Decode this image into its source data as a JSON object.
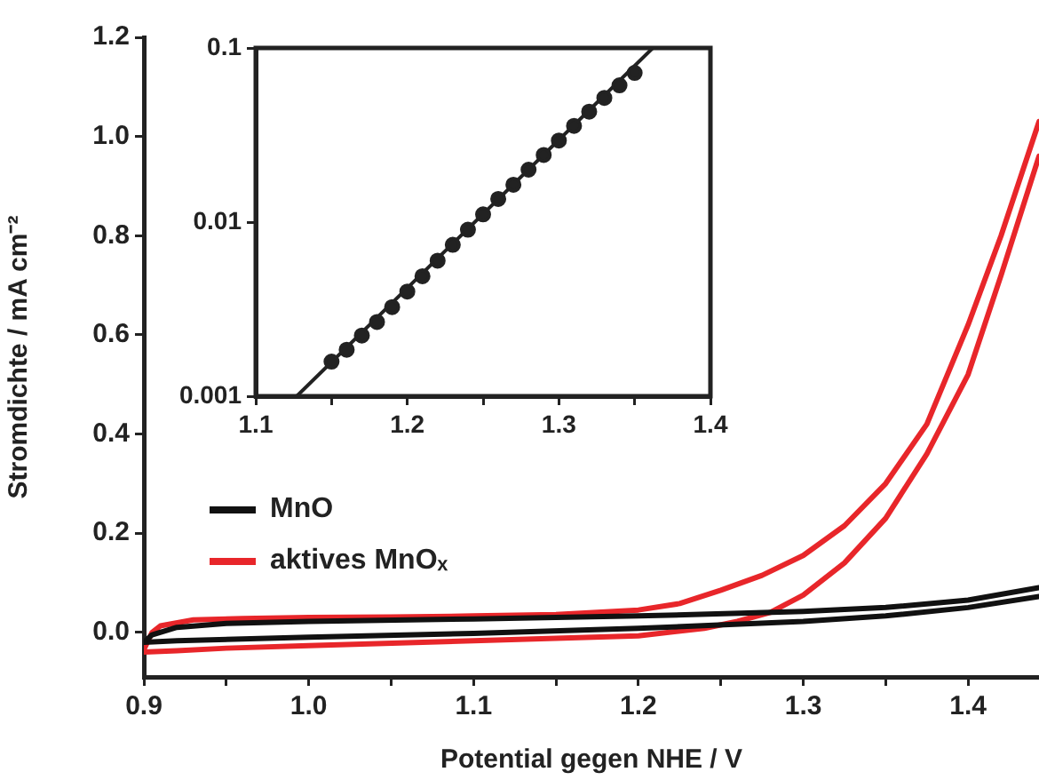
{
  "chart_data": [
    {
      "type": "line",
      "xlabel": "Potential gegen NHE / V",
      "ylabel": "Stromdichte / mA cm⁻²",
      "legend": "left",
      "marker": "none",
      "line_style": "solid",
      "xlim": [
        0.9,
        1.443
      ],
      "ylim": [
        -0.09,
        1.2
      ],
      "xticks": [
        0.9,
        {
          "value": 0.95,
          "label": null
        },
        {
          "value": 1.0,
          "label": "1.0"
        },
        {
          "value": 1.05,
          "label": null
        },
        1.1,
        {
          "value": 1.15,
          "label": null
        },
        1.2,
        {
          "value": 1.25,
          "label": null
        },
        1.3,
        {
          "value": 1.35,
          "label": null
        },
        1.4
      ],
      "yticks": [
        {
          "value": 0,
          "label": "0.0"
        },
        0.2,
        0.4,
        0.6,
        0.8,
        {
          "value": 1,
          "label": "1.0"
        },
        1.2
      ],
      "series": [
        {
          "name": "MnO",
          "color": "#111111",
          "x": [
            0.9,
            0.905,
            0.92,
            0.95,
            1.0,
            1.1,
            1.2,
            1.3,
            1.35,
            1.4,
            1.443
          ],
          "values": [
            -0.02,
            -0.005,
            0.01,
            0.018,
            0.022,
            0.027,
            0.033,
            0.042,
            0.05,
            0.065,
            0.09
          ]
        },
        {
          "color": "#111111",
          "x": [
            0.9,
            0.92,
            1.0,
            1.1,
            1.2,
            1.3,
            1.35,
            1.4,
            1.443
          ],
          "values": [
            -0.02,
            -0.017,
            -0.01,
            -0.002,
            0.008,
            0.022,
            0.033,
            0.05,
            0.072
          ]
        },
        {
          "name": "aktives MnOₓ",
          "color": "#e8262a",
          "x": [
            0.9,
            0.905,
            0.91,
            0.93,
            0.96,
            1.0,
            1.05,
            1.1,
            1.15,
            1.2,
            1.225,
            1.25,
            1.275,
            1.3,
            1.325,
            1.35,
            1.375,
            1.4,
            1.42,
            1.443
          ],
          "values": [
            -0.035,
            0.0,
            0.013,
            0.025,
            0.028,
            0.03,
            0.031,
            0.033,
            0.036,
            0.045,
            0.058,
            0.085,
            0.115,
            0.155,
            0.215,
            0.3,
            0.42,
            0.62,
            0.8,
            1.03
          ]
        },
        {
          "color": "#e8262a",
          "x": [
            0.9,
            0.92,
            0.95,
            1.0,
            1.1,
            1.2,
            1.24,
            1.26,
            1.28,
            1.3,
            1.325,
            1.35,
            1.375,
            1.4,
            1.42,
            1.443
          ],
          "values": [
            -0.04,
            -0.037,
            -0.032,
            -0.027,
            -0.017,
            -0.007,
            0.008,
            0.022,
            0.04,
            0.075,
            0.14,
            0.23,
            0.36,
            0.52,
            0.72,
            0.96
          ]
        }
      ]
    },
    {
      "type": "scatter",
      "log": "y",
      "marker": "circle",
      "xlim": [
        1.1,
        1.4
      ],
      "ylim": [
        0.001,
        0.1
      ],
      "xticks": [
        1.1,
        {
          "value": 1.15,
          "label": null
        },
        1.2,
        {
          "value": 1.25,
          "label": null
        },
        1.3,
        {
          "value": 1.35,
          "label": null
        },
        1.4
      ],
      "yticks": [
        0.001,
        0.01,
        0.1
      ],
      "series": [
        {
          "color": "#222222",
          "x": [
            1.15,
            1.16,
            1.17,
            1.18,
            1.19,
            1.2,
            1.21,
            1.22,
            1.23,
            1.24,
            1.25,
            1.26,
            1.27,
            1.28,
            1.29,
            1.3,
            1.31,
            1.32,
            1.33,
            1.34,
            1.35
          ],
          "values": [
            0.00158,
            0.00185,
            0.00223,
            0.00267,
            0.00325,
            0.00399,
            0.00489,
            0.006,
            0.00741,
            0.00904,
            0.01107,
            0.01358,
            0.0164,
            0.02,
            0.0243,
            0.0294,
            0.0357,
            0.0431,
            0.0517,
            0.061,
            0.0719
          ]
        },
        {
          "type": "line",
          "marker": "none",
          "color": "#222222",
          "x": [
            1.127,
            1.362
          ],
          "values": [
            0.001,
            0.1
          ]
        }
      ]
    }
  ]
}
